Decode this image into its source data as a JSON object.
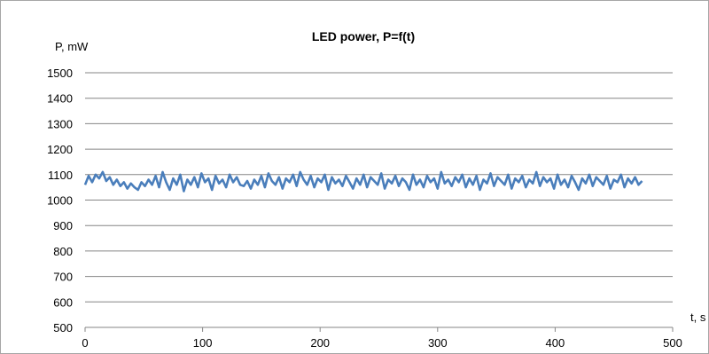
{
  "chart_data": {
    "type": "line",
    "title": "LED power, P=f(t)",
    "xlabel": "t, s",
    "ylabel": "P, mW",
    "xlim": [
      0,
      500
    ],
    "ylim": [
      500,
      1500
    ],
    "xticks": [
      0,
      100,
      200,
      300,
      400,
      500
    ],
    "yticks": [
      500,
      600,
      700,
      800,
      900,
      1000,
      1100,
      1200,
      1300,
      1400,
      1500
    ],
    "grid": "horizontal",
    "legend": "none",
    "line_color": "#4a7ebb",
    "series": [
      {
        "x": [
          0,
          3,
          6,
          9,
          12,
          15,
          18,
          21,
          24,
          27,
          30,
          33,
          36,
          39,
          42,
          45,
          48,
          51,
          54,
          57,
          60,
          63,
          66,
          69,
          72,
          75,
          78,
          81,
          84,
          87,
          90,
          93,
          96,
          99,
          102,
          105,
          108,
          111,
          114,
          117,
          120,
          123,
          126,
          129,
          132,
          135,
          138,
          141,
          144,
          147,
          150,
          153,
          156,
          159,
          162,
          165,
          168,
          171,
          174,
          177,
          180,
          183,
          186,
          189,
          192,
          195,
          198,
          201,
          204,
          207,
          210,
          213,
          216,
          219,
          222,
          225,
          228,
          231,
          234,
          237,
          240,
          243,
          246,
          249,
          252,
          255,
          258,
          261,
          264,
          267,
          270,
          273,
          276,
          279,
          282,
          285,
          288,
          291,
          294,
          297,
          300,
          303,
          306,
          309,
          312,
          315,
          318,
          321,
          324,
          327,
          330,
          333,
          336,
          339,
          342,
          345,
          348,
          351,
          354,
          357,
          360,
          363,
          366,
          369,
          372,
          375,
          378,
          381,
          384,
          387,
          390,
          393,
          396,
          399,
          402,
          405,
          408,
          411,
          414,
          417,
          420,
          423,
          426,
          429,
          432,
          435,
          438,
          441,
          444,
          447,
          450,
          453,
          456,
          459,
          462,
          465,
          468,
          471,
          474
        ],
        "values": [
          1060,
          1095,
          1070,
          1100,
          1085,
          1110,
          1075,
          1090,
          1060,
          1080,
          1055,
          1070,
          1045,
          1065,
          1050,
          1040,
          1070,
          1055,
          1080,
          1060,
          1095,
          1050,
          1110,
          1070,
          1040,
          1085,
          1060,
          1100,
          1035,
          1080,
          1060,
          1090,
          1050,
          1105,
          1070,
          1085,
          1040,
          1095,
          1065,
          1080,
          1050,
          1100,
          1070,
          1090,
          1060,
          1055,
          1075,
          1045,
          1080,
          1060,
          1095,
          1050,
          1105,
          1075,
          1060,
          1090,
          1045,
          1085,
          1070,
          1100,
          1055,
          1110,
          1080,
          1060,
          1095,
          1050,
          1085,
          1070,
          1100,
          1040,
          1090,
          1065,
          1080,
          1055,
          1095,
          1070,
          1045,
          1085,
          1060,
          1100,
          1050,
          1090,
          1075,
          1060,
          1105,
          1045,
          1080,
          1065,
          1095,
          1055,
          1085,
          1070,
          1040,
          1100,
          1060,
          1080,
          1050,
          1095,
          1070,
          1085,
          1045,
          1110,
          1065,
          1080,
          1055,
          1090,
          1070,
          1100,
          1050,
          1085,
          1060,
          1095,
          1040,
          1080,
          1065,
          1105,
          1055,
          1090,
          1075,
          1060,
          1100,
          1045,
          1085,
          1070,
          1095,
          1050,
          1080,
          1065,
          1110,
          1055,
          1090,
          1070,
          1085,
          1045,
          1100,
          1060,
          1080,
          1050,
          1095,
          1070,
          1040,
          1085,
          1065,
          1100,
          1055,
          1090,
          1075,
          1060,
          1095,
          1045,
          1080,
          1070,
          1100,
          1050,
          1085,
          1065,
          1090,
          1060,
          1075
        ]
      }
    ]
  }
}
